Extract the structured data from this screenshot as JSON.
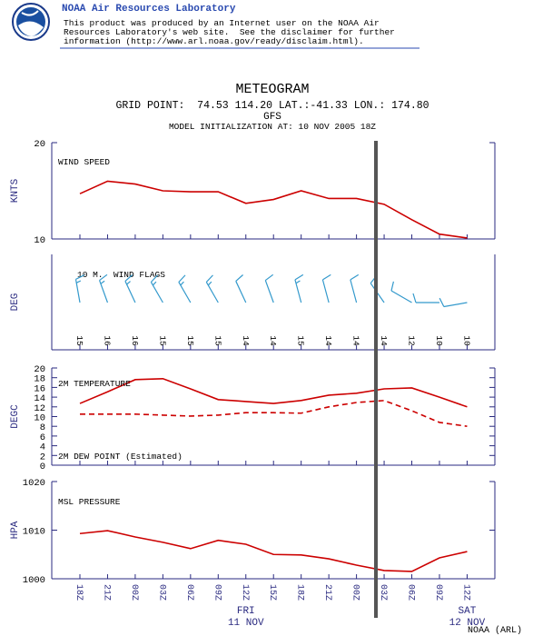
{
  "header": {
    "org": "NOAA Air Resources Laboratory",
    "disclaimer": [
      "This product was produced by an Internet user on the NOAA Air",
      "Resources Laboratory's web site.  See the disclaimer for further",
      "information (http://www.arl.noaa.gov/ready/disclaim.html)."
    ]
  },
  "title": "METEOGRAM",
  "grid_point": "GRID POINT:  74.53 114.20 LAT.:-41.33 LON.: 174.80",
  "model": "GFS",
  "init": "MODEL INITIALIZATION AT: 10 NOV 2005 18Z",
  "x_axis": {
    "categories": [
      "18Z",
      "21Z",
      "00Z",
      "03Z",
      "06Z",
      "09Z",
      "12Z",
      "15Z",
      "18Z",
      "21Z",
      "00Z",
      "03Z",
      "06Z",
      "09Z",
      "12Z"
    ],
    "days": [
      {
        "day": "FRI",
        "date": "11 NOV"
      },
      {
        "day": "SAT",
        "date": "12 NOV"
      }
    ]
  },
  "credit": "NOAA (ARL)",
  "chart_data": [
    {
      "type": "line",
      "ylabel": "KNTS",
      "annotation": "WIND SPEED",
      "ylim": [
        10,
        20
      ],
      "yticks": [
        10,
        20
      ],
      "color": "#cc0000",
      "values": [
        14.7,
        16.0,
        15.7,
        15.0,
        14.9,
        14.9,
        13.7,
        14.1,
        15.0,
        14.2,
        14.2,
        13.6,
        12.0,
        10.5,
        10.1
      ]
    },
    {
      "type": "barbs",
      "ylabel": "DEG",
      "annotation": "10 M.  WIND FLAGS",
      "color": "#3399cc",
      "values": [
        15,
        16,
        16,
        15,
        15,
        15,
        14,
        14,
        15,
        14,
        14,
        14,
        12,
        10,
        10
      ],
      "directions": [
        350,
        340,
        335,
        330,
        330,
        330,
        335,
        340,
        345,
        345,
        345,
        325,
        300,
        270,
        260
      ]
    },
    {
      "type": "line",
      "ylabel": "DEGC",
      "ylim": [
        0,
        20
      ],
      "yticks": [
        0,
        2,
        4,
        6,
        8,
        10,
        12,
        14,
        16,
        18,
        20
      ],
      "series": [
        {
          "name": "2M TEMPERATURE",
          "color": "#cc0000",
          "values": [
            12.7,
            15.1,
            17.6,
            17.8,
            15.7,
            13.5,
            13.1,
            12.7,
            13.3,
            14.4,
            14.8,
            15.7,
            15.9,
            14.0,
            12.0
          ]
        },
        {
          "name": "2M DEW POINT (Estimated)",
          "color": "#cc0000",
          "dashed": true,
          "values": [
            10.5,
            10.5,
            10.5,
            10.3,
            10.1,
            10.3,
            10.8,
            10.8,
            10.7,
            12.0,
            12.9,
            13.3,
            11.2,
            8.8,
            8.0
          ]
        }
      ]
    },
    {
      "type": "line",
      "ylabel": "HPA",
      "annotation": "MSL PRESSURE",
      "ylim": [
        1000,
        1020
      ],
      "yticks": [
        1000,
        1010,
        1020
      ],
      "color": "#cc0000",
      "values": [
        1009.3,
        1009.9,
        1008.6,
        1007.5,
        1006.2,
        1007.9,
        1007.1,
        1005.0,
        1004.9,
        1004.1,
        1002.8,
        1001.7,
        1001.5,
        1004.3,
        1005.6
      ]
    }
  ]
}
